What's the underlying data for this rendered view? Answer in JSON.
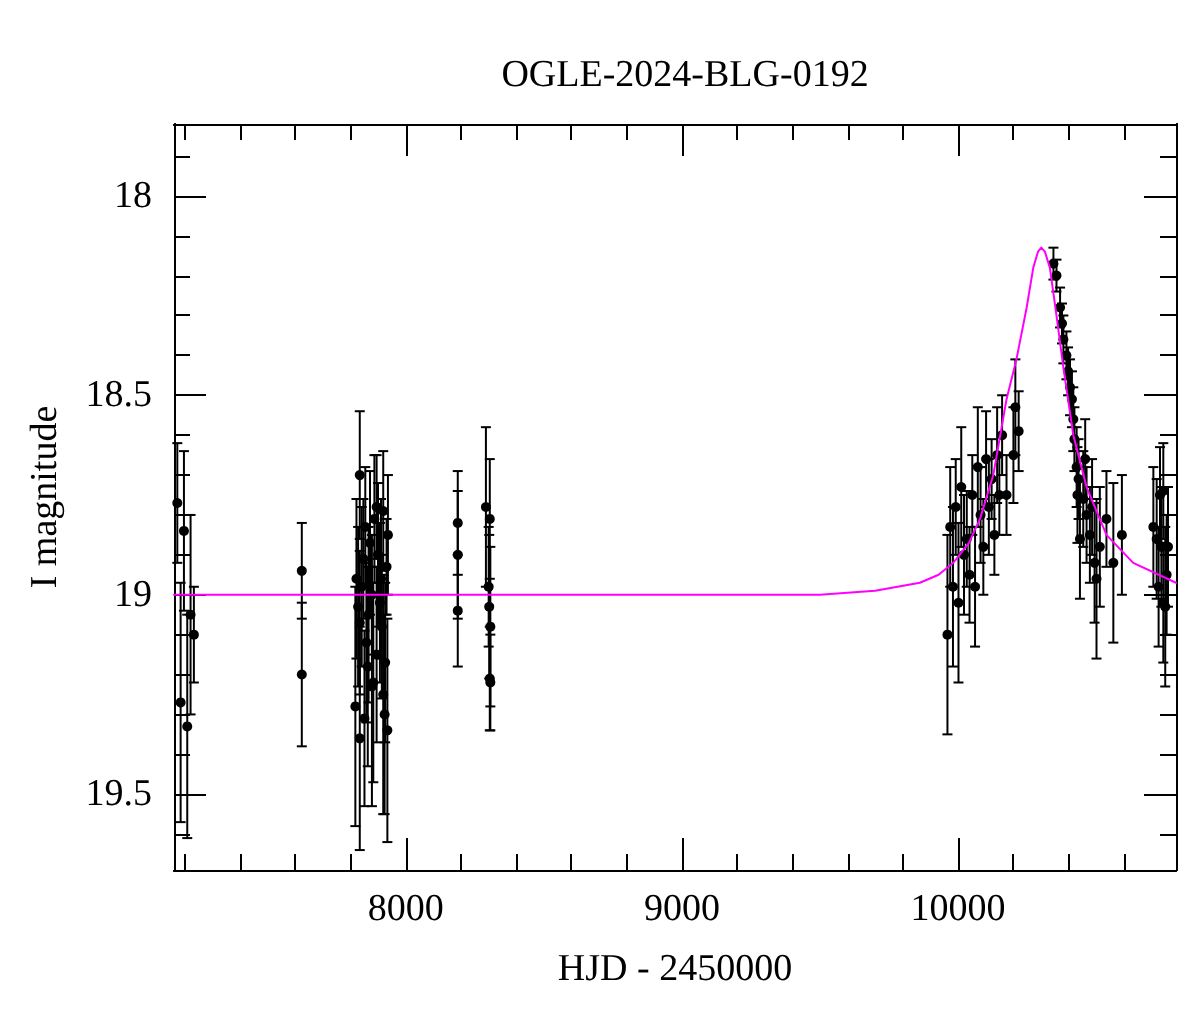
{
  "chart_data": {
    "type": "scatter",
    "title": "OGLE-2024-BLG-0192",
    "xlabel": "HJD - 2450000",
    "ylabel": "I magnitude",
    "marker": "circle",
    "xlim": [
      7160,
      10790
    ],
    "xticks": [
      {
        "value": 7200,
        "label": null
      },
      {
        "value": 7400,
        "label": null
      },
      {
        "value": 7600,
        "label": null
      },
      {
        "value": 7800,
        "label": null
      },
      8000,
      {
        "value": 8200,
        "label": null
      },
      {
        "value": 8400,
        "label": null
      },
      {
        "value": 8600,
        "label": null
      },
      {
        "value": 8800,
        "label": null
      },
      9000,
      {
        "value": 9200,
        "label": null
      },
      {
        "value": 9400,
        "label": null
      },
      {
        "value": 9600,
        "label": null
      },
      {
        "value": 9800,
        "label": null
      },
      10000,
      {
        "value": 10200,
        "label": null
      },
      {
        "value": 10400,
        "label": null
      },
      {
        "value": 10600,
        "label": null
      }
    ],
    "ylim": [
      19.69,
      17.82
    ],
    "yticks": [
      {
        "value": 17.9,
        "label": null
      },
      18,
      {
        "value": 18.1,
        "label": null
      },
      {
        "value": 18.2,
        "label": null
      },
      {
        "value": 18.3,
        "label": null
      },
      {
        "value": 18.4,
        "label": null
      },
      18.5,
      {
        "value": 18.6,
        "label": null
      },
      {
        "value": 18.7,
        "label": null
      },
      {
        "value": 18.8,
        "label": null
      },
      {
        "value": 18.9,
        "label": null
      },
      19,
      {
        "value": 19.1,
        "label": null
      },
      {
        "value": 19.2,
        "label": null
      },
      {
        "value": 19.3,
        "label": null
      },
      {
        "value": 19.4,
        "label": null
      },
      19.5,
      {
        "value": 19.6,
        "label": null
      }
    ],
    "series": [
      {
        "color": "#000000",
        "x": [
          7172,
          7184,
          7196,
          7208,
          7220,
          7232,
          7623,
          7623,
          7833,
          7821,
          7817,
          7833,
          7850,
          7853,
          7870,
          7894,
          7918,
          7930,
          7906,
          7882,
          7918,
          7933,
          7923,
          7833,
          7857,
          7894,
          7925,
          7846,
          7899,
          7935,
          7827,
          7877,
          7913,
          7862,
          7886,
          7877,
          7840,
          7910,
          7865,
          8188,
          8188,
          8188,
          8290,
          8304,
          8300,
          8302,
          8306,
          8304,
          8306,
          9962,
          9972,
          9982,
          9992,
          10002,
          10012,
          10022,
          10032,
          10042,
          10052,
          10062,
          10072,
          10082,
          10092,
          10102,
          10112,
          10122,
          10132,
          10142,
          10150,
          10160,
          10176,
          10201,
          10208,
          10220,
          10346,
          10357,
          10370,
          10377,
          10382,
          10393,
          10399,
          10406,
          10413,
          10418,
          10422,
          10430,
          10437,
          10433,
          10454,
          10466,
          10478,
          10442,
          10495,
          10502,
          10514,
          10538,
          10563,
          10594,
          10486,
          10461,
          10708,
          10720,
          10732,
          10744,
          10737,
          10756,
          10744,
          10727,
          10761,
          10751
        ],
        "values": [
          18.77,
          19.27,
          18.84,
          19.33,
          19.05,
          19.1,
          18.94,
          19.2,
          18.7,
          18.96,
          19.28,
          19.36,
          19.31,
          18.83,
          18.87,
          18.78,
          18.79,
          18.93,
          19.02,
          19.22,
          19.25,
          19.34,
          19.3,
          19.07,
          19.12,
          19.15,
          19.17,
          18.91,
          18.9,
          18.85,
          19.03,
          19.0,
          19.08,
          19.18,
          18.81,
          19.23,
          18.98,
          18.96,
          19.05,
          18.82,
          18.9,
          19.04,
          18.78,
          18.81,
          18.98,
          19.03,
          19.08,
          19.21,
          19.22,
          19.1,
          18.83,
          18.98,
          18.78,
          19.02,
          18.73,
          18.9,
          18.86,
          18.95,
          18.75,
          18.98,
          18.68,
          18.8,
          18.88,
          18.66,
          18.78,
          18.71,
          18.85,
          18.65,
          18.75,
          18.6,
          18.75,
          18.65,
          18.53,
          18.59,
          18.17,
          18.2,
          18.28,
          18.32,
          18.36,
          18.4,
          18.44,
          18.48,
          18.51,
          18.56,
          18.61,
          18.68,
          18.71,
          18.75,
          18.76,
          18.8,
          18.85,
          18.86,
          18.92,
          18.96,
          18.88,
          18.81,
          18.92,
          18.85,
          18.78,
          18.66,
          18.83,
          18.86,
          18.75,
          18.74,
          18.88,
          18.95,
          19.02,
          18.98,
          18.88,
          19.03
        ],
        "errors": [
          0.15,
          0.3,
          0.2,
          0.28,
          0.25,
          0.12,
          0.12,
          0.18,
          0.16,
          0.2,
          0.3,
          0.28,
          0.22,
          0.15,
          0.18,
          0.13,
          0.15,
          0.12,
          0.2,
          0.25,
          0.3,
          0.28,
          0.25,
          0.18,
          0.2,
          0.22,
          0.2,
          0.15,
          0.18,
          0.15,
          0.2,
          0.15,
          0.18,
          0.25,
          0.16,
          0.3,
          0.2,
          0.2,
          0.22,
          0.13,
          0.16,
          0.14,
          0.2,
          0.15,
          0.15,
          0.18,
          0.2,
          0.13,
          0.12,
          0.25,
          0.15,
          0.2,
          0.12,
          0.2,
          0.15,
          0.15,
          0.12,
          0.12,
          0.1,
          0.15,
          0.15,
          0.12,
          0.12,
          0.12,
          0.12,
          0.1,
          0.1,
          0.12,
          0.1,
          0.1,
          0.1,
          0.12,
          0.12,
          0.1,
          0.04,
          0.04,
          0.05,
          0.05,
          0.06,
          0.06,
          0.06,
          0.07,
          0.07,
          0.08,
          0.08,
          0.1,
          0.1,
          0.12,
          0.12,
          0.12,
          0.12,
          0.15,
          0.15,
          0.2,
          0.15,
          0.12,
          0.2,
          0.15,
          0.12,
          0.1,
          0.15,
          0.15,
          0.12,
          0.12,
          0.15,
          0.15,
          0.15,
          0.15,
          0.15,
          0.2
        ]
      },
      {
        "type": "line",
        "color": "#ff00ff",
        "marker": "none",
        "x": [
          7160,
          9000,
          9500,
          9700,
          9862,
          9930,
          9983,
          10040,
          10080,
          10128,
          10176,
          10212,
          10249,
          10273,
          10290,
          10302,
          10315,
          10333,
          10357,
          10382,
          10418,
          10466,
          10538,
          10635,
          10790
        ],
        "values": [
          19.0,
          19.0,
          19.0,
          18.99,
          18.97,
          18.95,
          18.92,
          18.87,
          18.81,
          18.7,
          18.51,
          18.41,
          18.28,
          18.18,
          18.14,
          18.13,
          18.14,
          18.18,
          18.3,
          18.43,
          18.6,
          18.73,
          18.85,
          18.92,
          18.97
        ]
      }
    ]
  }
}
